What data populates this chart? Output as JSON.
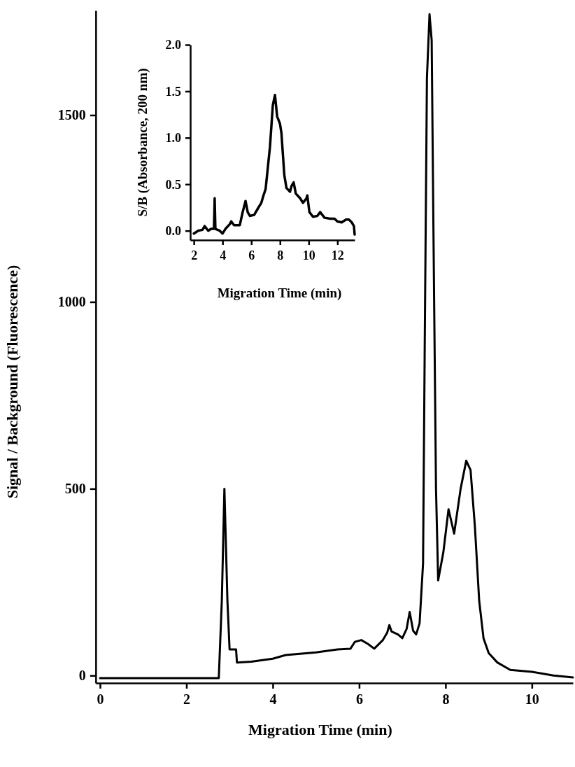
{
  "chart_data": [
    {
      "type": "line",
      "xlabel": "Migration Time (min)",
      "ylabel": "Signal / Background (Fluorescence)",
      "xlim": [
        -0.1,
        10.95
      ],
      "ylim": [
        -20,
        1780
      ],
      "xticks": [
        0,
        2,
        4,
        6,
        8,
        10
      ],
      "yticks": [
        0,
        500,
        1000,
        1500
      ],
      "grid": false,
      "marker": "none",
      "line_style": "solid",
      "series": [
        {
          "color": "#000000",
          "x": [
            0,
            1,
            2,
            2.75,
            2.82,
            2.88,
            2.95,
            3.0,
            3.15,
            3.17,
            3.5,
            4.0,
            4.3,
            5.0,
            5.5,
            5.8,
            5.9,
            6.05,
            6.2,
            6.35,
            6.55,
            6.65,
            6.7,
            6.75,
            6.9,
            7.0,
            7.1,
            7.17,
            7.25,
            7.32,
            7.4,
            7.48,
            7.52,
            7.57,
            7.63,
            7.68,
            7.72,
            7.78,
            7.83,
            7.95,
            8.07,
            8.2,
            8.35,
            8.48,
            8.58,
            8.68,
            8.78,
            8.88,
            9.0,
            9.2,
            9.5,
            10.0,
            10.5,
            10.95
          ],
          "values": [
            -7,
            -7,
            -7,
            -7,
            200,
            500,
            200,
            70,
            70,
            35,
            37,
            45,
            55,
            62,
            70,
            72,
            90,
            95,
            85,
            72,
            95,
            115,
            135,
            118,
            110,
            100,
            125,
            170,
            120,
            110,
            140,
            300,
            900,
            1600,
            1770,
            1700,
            1200,
            500,
            255,
            330,
            445,
            380,
            500,
            575,
            550,
            400,
            200,
            100,
            60,
            35,
            15,
            10,
            0,
            -5
          ]
        }
      ]
    },
    {
      "type": "line",
      "xlabel": "Migration Time (min)",
      "ylabel": "S/B (Absorbance, 200 nm)",
      "xlim": [
        1.75,
        13.2
      ],
      "ylim": [
        -0.1,
        2.0
      ],
      "xticks": [
        2,
        4,
        6,
        8,
        10,
        12
      ],
      "yticks": [
        {
          "value": 0,
          "label": "0.0"
        },
        {
          "value": 0.5,
          "label": "0.5"
        },
        {
          "value": 1,
          "label": "1.0"
        },
        {
          "value": 1.5,
          "label": "1.5"
        },
        {
          "value": 2,
          "label": "2.0"
        }
      ],
      "grid": false,
      "marker": "none",
      "line_style": "solid",
      "series": [
        {
          "color": "#000000",
          "x": [
            2.0,
            2.3,
            2.6,
            2.75,
            3.0,
            3.2,
            3.4,
            3.45,
            3.5,
            3.8,
            4.0,
            4.2,
            4.5,
            4.6,
            4.8,
            5.2,
            5.4,
            5.6,
            5.75,
            5.9,
            6.2,
            6.5,
            6.7,
            6.85,
            7.0,
            7.3,
            7.5,
            7.65,
            7.8,
            8.0,
            8.1,
            8.3,
            8.45,
            8.7,
            8.8,
            8.95,
            9.1,
            9.4,
            9.6,
            9.85,
            9.9,
            10.05,
            10.3,
            10.6,
            10.8,
            11.1,
            11.5,
            11.8,
            12.0,
            12.3,
            12.6,
            12.8,
            13.0,
            13.15,
            13.2
          ],
          "values": [
            -0.03,
            0.0,
            0.01,
            0.05,
            0.0,
            0.02,
            0.02,
            0.35,
            0.02,
            0.0,
            -0.03,
            0.02,
            0.07,
            0.1,
            0.06,
            0.06,
            0.2,
            0.32,
            0.2,
            0.16,
            0.17,
            0.25,
            0.3,
            0.38,
            0.45,
            0.9,
            1.35,
            1.46,
            1.23,
            1.15,
            1.05,
            0.6,
            0.46,
            0.42,
            0.48,
            0.52,
            0.4,
            0.35,
            0.3,
            0.35,
            0.38,
            0.2,
            0.15,
            0.16,
            0.2,
            0.14,
            0.13,
            0.13,
            0.1,
            0.09,
            0.12,
            0.12,
            0.09,
            0.05,
            -0.04
          ]
        }
      ]
    }
  ]
}
